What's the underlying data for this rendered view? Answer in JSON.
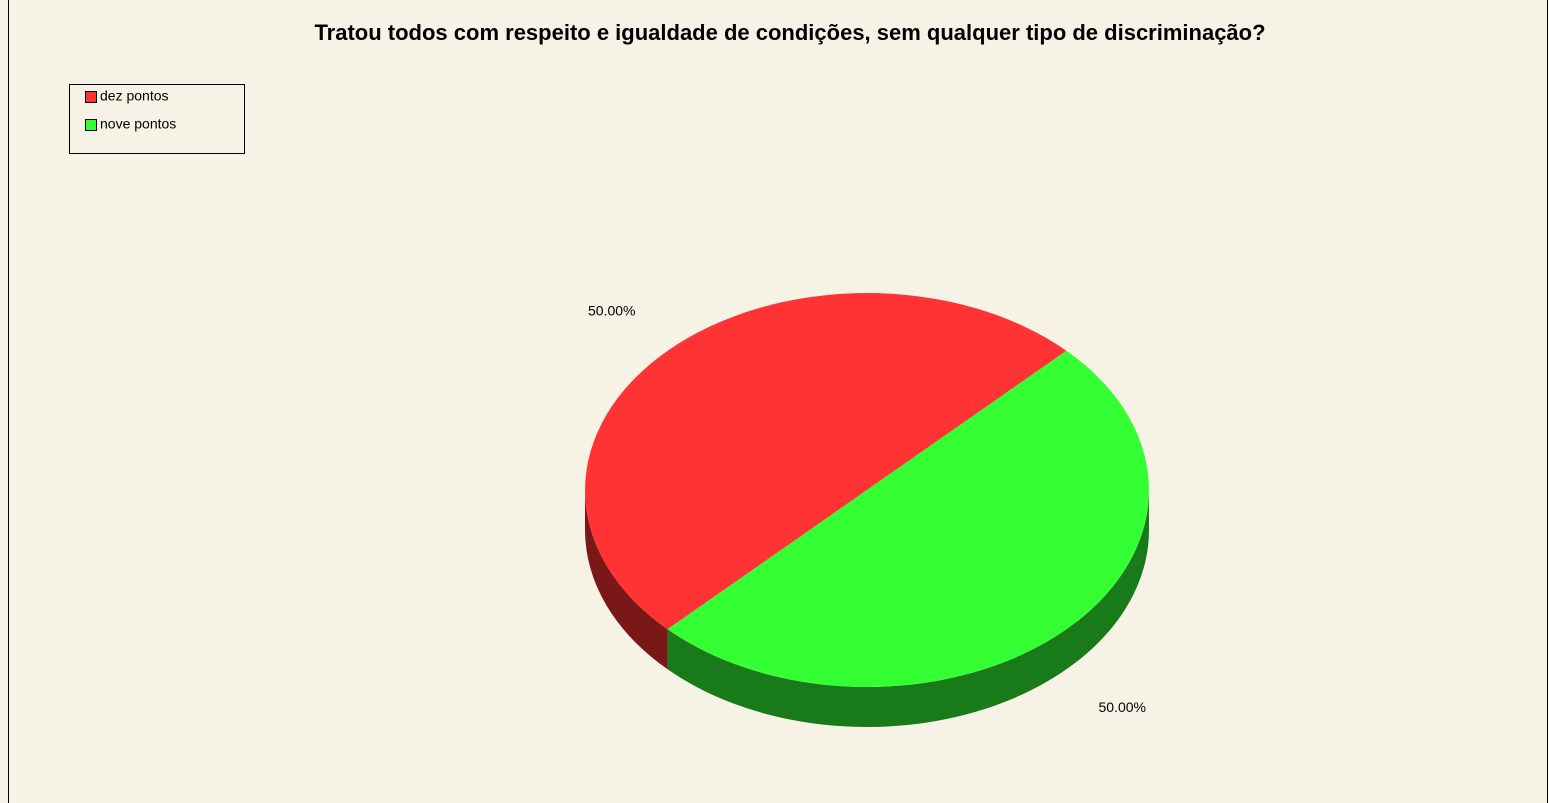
{
  "chart_data": {
    "type": "pie",
    "title": "Tratou todos com respeito e igualdade de condições, sem qualquer tipo de discriminação?",
    "categories": [
      "dez pontos",
      "nove pontos"
    ],
    "values": [
      50,
      50
    ],
    "value_labels": [
      "50.00%",
      "50.00%"
    ],
    "colors": [
      "#ff3333",
      "#33ff33"
    ],
    "legend": "top-left"
  }
}
